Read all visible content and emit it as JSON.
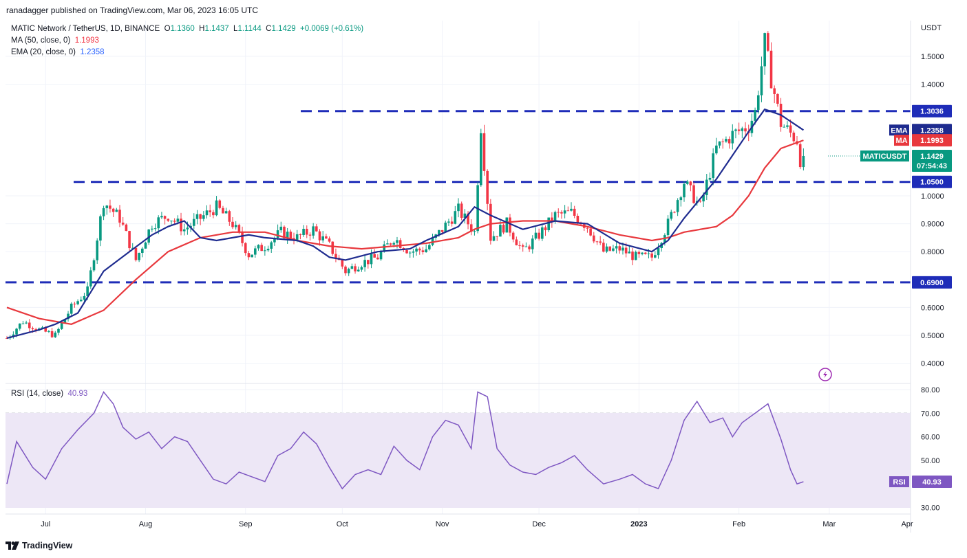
{
  "publisher": "ranadagger published on TradingView.com, Mar 06, 2023 16:05 UTC",
  "legend": {
    "title": "MATIC Network / TetherUS, 1D, BINANCE",
    "ohlc": {
      "o_label": "O",
      "o": "1.1360",
      "h_label": "H",
      "h": "1.1437",
      "l_label": "L",
      "l": "1.1144",
      "c_label": "C",
      "c": "1.1429",
      "change": "+0.0069 (+0.61%)"
    },
    "ma": {
      "label": "MA (50, close, 0)",
      "value": "1.1993"
    },
    "ema": {
      "label": "EMA (20, close, 0)",
      "value": "1.2358"
    }
  },
  "rsi_legend": {
    "label": "RSI (14, close)",
    "value": "40.93"
  },
  "footer": {
    "brand": "TradingView"
  },
  "colors": {
    "up": "#089981",
    "down": "#f23645",
    "ema": "#1e2b8f",
    "ma": "#e8383d",
    "level": "#1e2cb8",
    "rsi": "#7e57c2",
    "rsi_band": "#ede7f6",
    "price_tag": "#089981",
    "grid": "#f0f3fa"
  },
  "chart_data": [
    {
      "type": "candlestick",
      "symbol": "MATICUSDT",
      "y_unit": "USDT",
      "yticks": [
        "1.5000",
        "1.4000",
        "1.3036",
        "1.2358",
        "1.1993",
        "1.1429",
        "1.0500",
        "1.0000",
        "0.9000",
        "0.8000",
        "0.6900",
        "0.6000",
        "0.5000",
        "0.4000"
      ],
      "ylim": [
        0.37,
        1.62
      ],
      "x_ticks": [
        "Jul",
        "Aug",
        "Sep",
        "Oct",
        "Nov",
        "Dec",
        "2023",
        "Feb",
        "Mar",
        "Apr"
      ],
      "levels": [
        1.3036,
        1.05,
        0.69
      ],
      "tags": {
        "ema": {
          "label": "EMA",
          "value": "1.2358"
        },
        "ma": {
          "label": "MA",
          "value": "1.1993"
        },
        "last": {
          "label": "MATICUSDT",
          "value": "1.1429",
          "countdown": "07:54:43"
        }
      },
      "close_path": [
        [
          0,
          0.49
        ],
        [
          5,
          0.55
        ],
        [
          10,
          0.52
        ],
        [
          15,
          0.5
        ],
        [
          20,
          0.6
        ],
        [
          25,
          0.66
        ],
        [
          30,
          0.98
        ],
        [
          35,
          0.92
        ],
        [
          40,
          0.77
        ],
        [
          45,
          0.9
        ],
        [
          50,
          0.93
        ],
        [
          55,
          0.88
        ],
        [
          60,
          0.92
        ],
        [
          65,
          0.96
        ],
        [
          70,
          0.9
        ],
        [
          75,
          0.79
        ],
        [
          80,
          0.82
        ],
        [
          85,
          0.87
        ],
        [
          90,
          0.85
        ],
        [
          95,
          0.88
        ],
        [
          100,
          0.82
        ],
        [
          105,
          0.73
        ],
        [
          110,
          0.76
        ],
        [
          115,
          0.78
        ],
        [
          120,
          0.85
        ],
        [
          125,
          0.8
        ],
        [
          130,
          0.81
        ],
        [
          135,
          0.88
        ],
        [
          140,
          0.95
        ],
        [
          145,
          0.87
        ],
        [
          147,
          1.25
        ],
        [
          150,
          0.85
        ],
        [
          155,
          0.9
        ],
        [
          160,
          0.8
        ],
        [
          165,
          0.86
        ],
        [
          170,
          0.93
        ],
        [
          175,
          0.94
        ],
        [
          180,
          0.89
        ],
        [
          185,
          0.8
        ],
        [
          190,
          0.81
        ],
        [
          195,
          0.78
        ],
        [
          200,
          0.78
        ],
        [
          205,
          0.9
        ],
        [
          210,
          1.05
        ],
        [
          215,
          0.96
        ],
        [
          220,
          1.17
        ],
        [
          225,
          1.22
        ],
        [
          230,
          1.25
        ],
        [
          232,
          1.3
        ],
        [
          235,
          1.55
        ],
        [
          237,
          1.42
        ],
        [
          240,
          1.26
        ],
        [
          245,
          1.2
        ],
        [
          246,
          1.13
        ],
        [
          247,
          1.14
        ]
      ],
      "ema20": [
        [
          0,
          0.49
        ],
        [
          10,
          0.52
        ],
        [
          15,
          0.54
        ],
        [
          22,
          0.58
        ],
        [
          30,
          0.73
        ],
        [
          38,
          0.8
        ],
        [
          45,
          0.86
        ],
        [
          50,
          0.89
        ],
        [
          55,
          0.91
        ],
        [
          60,
          0.85
        ],
        [
          65,
          0.84
        ],
        [
          75,
          0.86
        ],
        [
          80,
          0.85
        ],
        [
          90,
          0.84
        ],
        [
          95,
          0.82
        ],
        [
          100,
          0.78
        ],
        [
          105,
          0.77
        ],
        [
          115,
          0.8
        ],
        [
          125,
          0.81
        ],
        [
          130,
          0.84
        ],
        [
          140,
          0.89
        ],
        [
          145,
          0.96
        ],
        [
          150,
          0.93
        ],
        [
          160,
          0.88
        ],
        [
          170,
          0.91
        ],
        [
          180,
          0.9
        ],
        [
          190,
          0.83
        ],
        [
          200,
          0.8
        ],
        [
          205,
          0.84
        ],
        [
          210,
          0.92
        ],
        [
          220,
          1.06
        ],
        [
          230,
          1.23
        ],
        [
          235,
          1.31
        ],
        [
          240,
          1.29
        ],
        [
          247,
          1.2358
        ]
      ],
      "ma50": [
        [
          0,
          0.6
        ],
        [
          10,
          0.56
        ],
        [
          20,
          0.54
        ],
        [
          30,
          0.59
        ],
        [
          40,
          0.7
        ],
        [
          50,
          0.8
        ],
        [
          60,
          0.85
        ],
        [
          70,
          0.87
        ],
        [
          80,
          0.87
        ],
        [
          90,
          0.84
        ],
        [
          100,
          0.82
        ],
        [
          110,
          0.81
        ],
        [
          120,
          0.82
        ],
        [
          130,
          0.83
        ],
        [
          140,
          0.85
        ],
        [
          145,
          0.88
        ],
        [
          150,
          0.9
        ],
        [
          160,
          0.91
        ],
        [
          170,
          0.91
        ],
        [
          180,
          0.89
        ],
        [
          190,
          0.86
        ],
        [
          200,
          0.84
        ],
        [
          205,
          0.85
        ],
        [
          210,
          0.87
        ],
        [
          220,
          0.89
        ],
        [
          225,
          0.93
        ],
        [
          230,
          1.0
        ],
        [
          235,
          1.1
        ],
        [
          240,
          1.17
        ],
        [
          247,
          1.1993
        ]
      ]
    },
    {
      "type": "line",
      "name": "RSI",
      "yticks": [
        "80.00",
        "70.00",
        "60.00",
        "50.00",
        "40.93",
        "30.00"
      ],
      "ylim": [
        28,
        81
      ],
      "band": [
        30,
        70
      ],
      "values": [
        [
          0,
          40
        ],
        [
          3,
          58
        ],
        [
          8,
          47
        ],
        [
          12,
          42
        ],
        [
          17,
          55
        ],
        [
          22,
          63
        ],
        [
          27,
          70
        ],
        [
          30,
          79
        ],
        [
          33,
          74
        ],
        [
          36,
          64
        ],
        [
          40,
          59
        ],
        [
          44,
          62
        ],
        [
          48,
          55
        ],
        [
          52,
          60
        ],
        [
          56,
          58
        ],
        [
          60,
          50
        ],
        [
          64,
          42
        ],
        [
          68,
          40
        ],
        [
          72,
          45
        ],
        [
          76,
          43
        ],
        [
          80,
          41
        ],
        [
          84,
          52
        ],
        [
          88,
          55
        ],
        [
          92,
          62
        ],
        [
          96,
          57
        ],
        [
          100,
          47
        ],
        [
          104,
          38
        ],
        [
          108,
          44
        ],
        [
          112,
          46
        ],
        [
          116,
          44
        ],
        [
          120,
          56
        ],
        [
          124,
          50
        ],
        [
          128,
          46
        ],
        [
          132,
          60
        ],
        [
          136,
          67
        ],
        [
          140,
          65
        ],
        [
          144,
          55
        ],
        [
          146,
          79
        ],
        [
          149,
          77
        ],
        [
          152,
          55
        ],
        [
          156,
          48
        ],
        [
          160,
          45
        ],
        [
          164,
          44
        ],
        [
          168,
          47
        ],
        [
          172,
          49
        ],
        [
          176,
          52
        ],
        [
          180,
          46
        ],
        [
          185,
          40
        ],
        [
          190,
          42
        ],
        [
          194,
          44
        ],
        [
          198,
          40
        ],
        [
          202,
          38
        ],
        [
          206,
          50
        ],
        [
          210,
          67
        ],
        [
          214,
          75
        ],
        [
          218,
          66
        ],
        [
          222,
          68
        ],
        [
          225,
          60
        ],
        [
          228,
          66
        ],
        [
          232,
          70
        ],
        [
          236,
          74
        ],
        [
          240,
          59
        ],
        [
          243,
          46
        ],
        [
          245,
          40
        ],
        [
          247,
          40.93
        ]
      ],
      "value_tag": {
        "label": "RSI",
        "value": "40.93"
      }
    }
  ]
}
